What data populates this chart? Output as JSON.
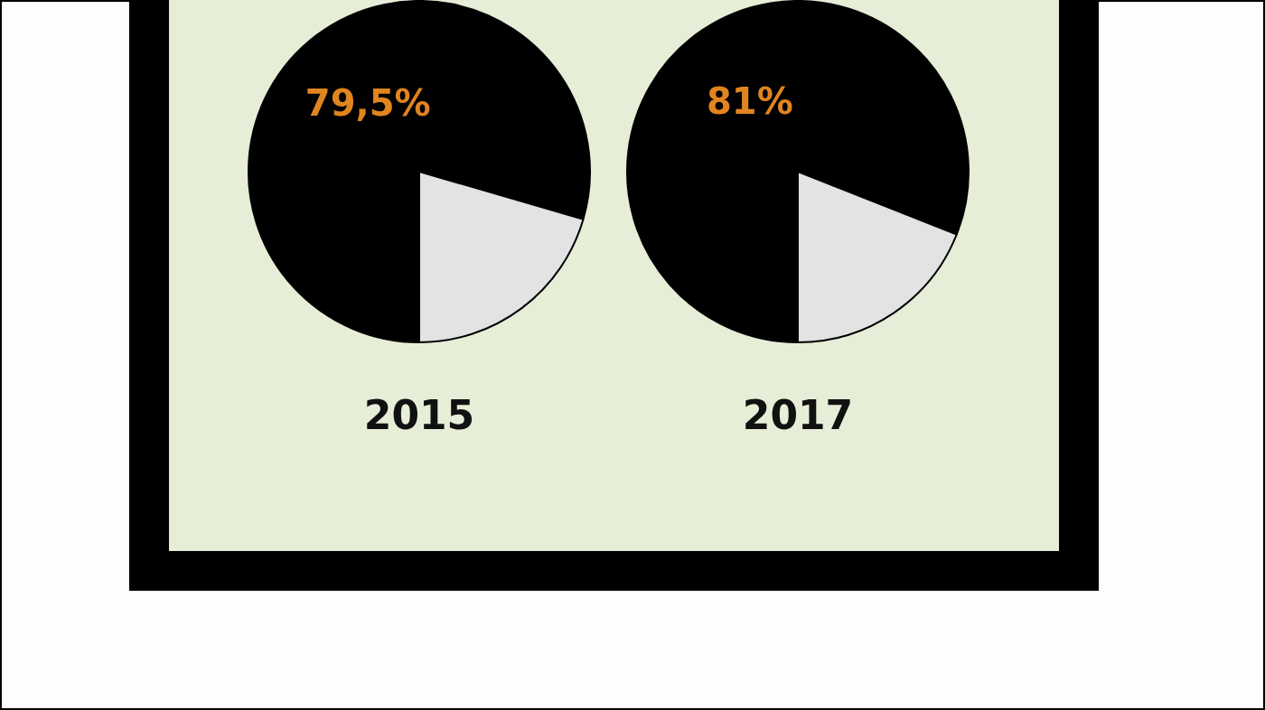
{
  "chart_data": [
    {
      "type": "pie",
      "title": "2015",
      "categories": [
        null,
        null
      ],
      "values": [
        79.5,
        20.5
      ],
      "colors": [
        "#000000",
        "#e3e3e3"
      ],
      "value_labels": [
        "79,5%",
        null
      ],
      "legend": false
    },
    {
      "type": "pie",
      "title": "2017",
      "categories": [
        null,
        null
      ],
      "values": [
        81,
        19
      ],
      "colors": [
        "#000000",
        "#e3e3e3"
      ],
      "value_labels": [
        "81%",
        null
      ],
      "legend": false
    }
  ]
}
